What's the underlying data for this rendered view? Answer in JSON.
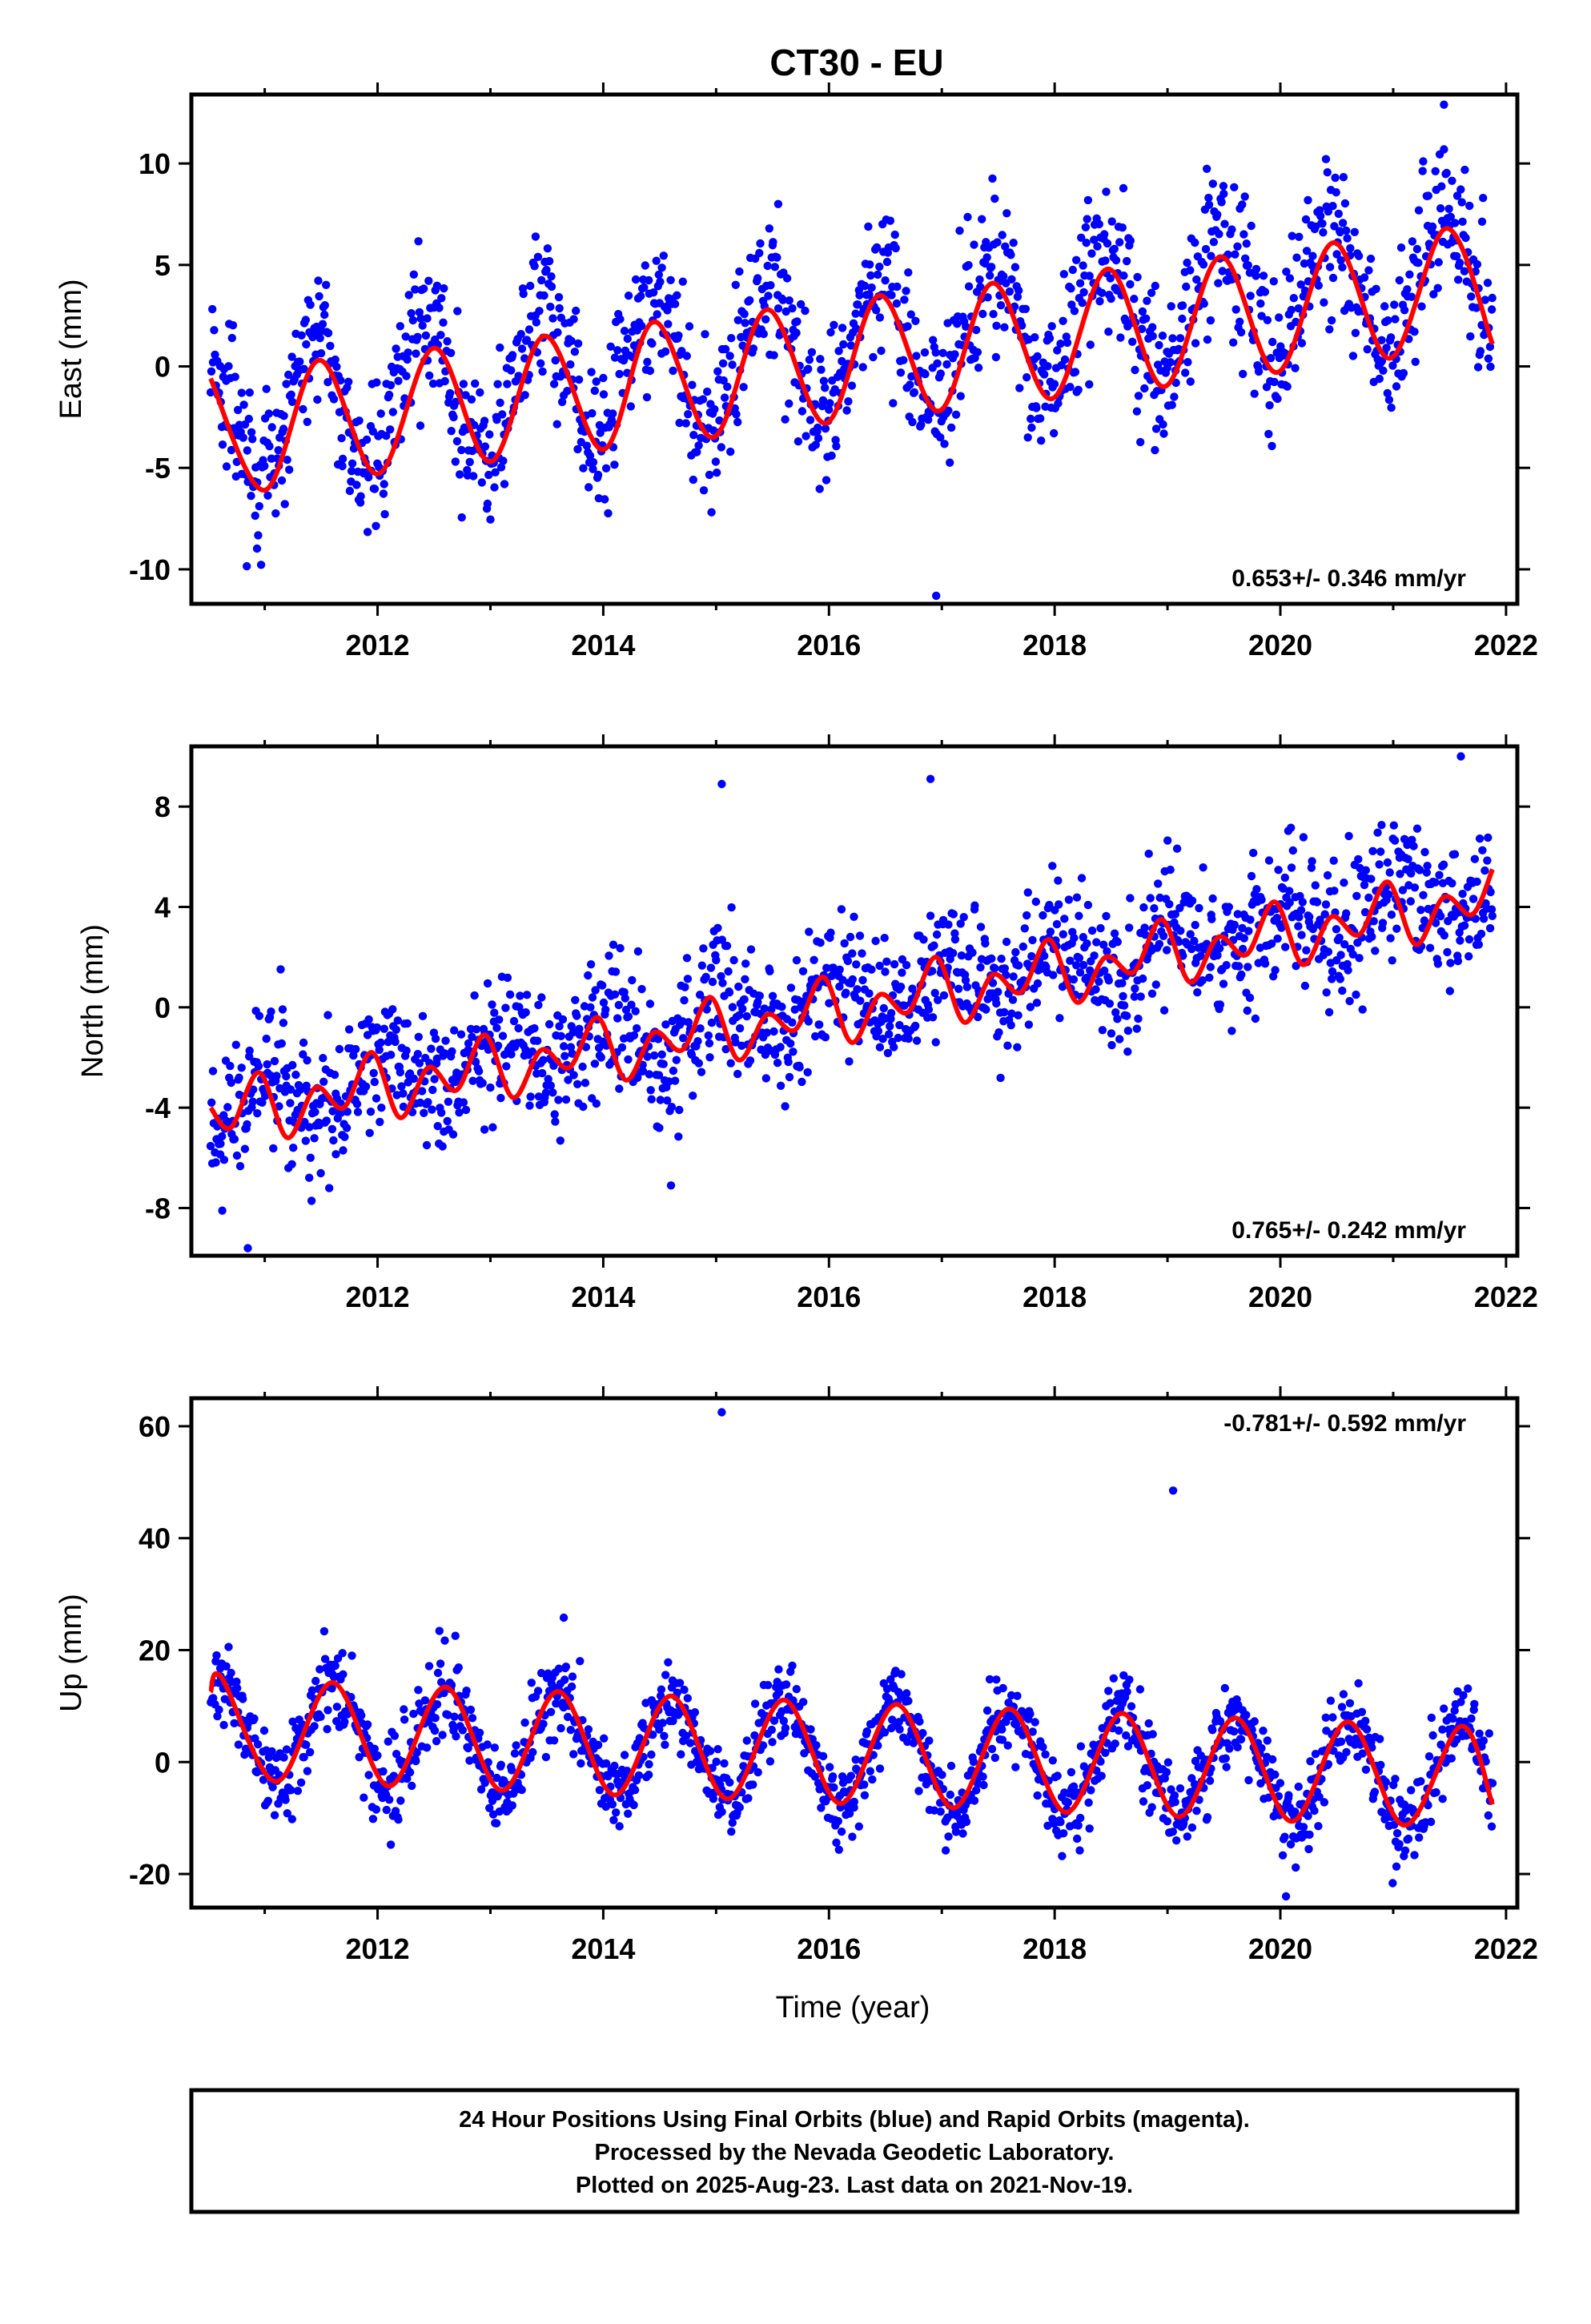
{
  "title": "CT30 - EU",
  "xlabel": "Time (year)",
  "caption": {
    "lines": [
      "24 Hour Positions Using Final Orbits (blue) and Rapid Orbits (magenta).",
      "Processed by the Nevada Geodetic Laboratory.",
      "Plotted on 2025-Aug-23. Last data on 2021-Nov-19."
    ]
  },
  "colors": {
    "points": "#0000ff",
    "model": "#ff0000",
    "axes": "#000000"
  },
  "chart_data": [
    {
      "type": "scatter",
      "ylabel": "East (mm)",
      "rate_label": "0.653+/- 0.346 mm/yr",
      "rate_position": "bottom-right",
      "xlim": [
        2010.35,
        2022.1
      ],
      "ylim": [
        -11.7,
        13.4
      ],
      "x_ticks": [
        2012,
        2014,
        2016,
        2018,
        2020,
        2022
      ],
      "y_ticks": [
        -10,
        -5,
        0,
        5,
        10
      ],
      "grid": false,
      "observations": {
        "name": "24 Hour Positions (Final Orbits)",
        "x_range": [
          2010.52,
          2021.88
        ],
        "trend": {
          "start": -2.7,
          "rate_mm_per_yr": 0.653
        },
        "annual_amplitude_mm": 3.3,
        "annual_peak_phase": 0.45,
        "scatter_sd_mm": 1.9,
        "outliers": [
          [
            2016.95,
            -11.3
          ],
          [
            2021.45,
            12.9
          ],
          [
            2015.55,
            8.0
          ],
          [
            2013.4,
            6.4
          ]
        ]
      },
      "model": {
        "name": "Fitted model",
        "x": [
          2010.52,
          2011.0,
          2011.48,
          2012.0,
          2012.5,
          2013.0,
          2013.48,
          2014.0,
          2014.45,
          2014.97,
          2015.45,
          2015.97,
          2016.45,
          2016.97,
          2017.45,
          2017.97,
          2018.47,
          2018.97,
          2019.47,
          2019.97,
          2020.47,
          2020.97,
          2021.47,
          2021.88
        ],
        "y": [
          -0.6,
          -6.1,
          0.3,
          -5.3,
          0.9,
          -4.7,
          1.5,
          -4.1,
          2.2,
          -3.5,
          2.8,
          -2.8,
          3.5,
          -2.2,
          4.1,
          -1.6,
          4.8,
          -1.0,
          5.4,
          -0.3,
          6.1,
          0.4,
          6.8,
          1.1
        ]
      }
    },
    {
      "type": "scatter",
      "ylabel": "North (mm)",
      "rate_label": "0.765+/- 0.242 mm/yr",
      "rate_position": "bottom-right",
      "xlim": [
        2010.35,
        2022.1
      ],
      "ylim": [
        -9.9,
        10.4
      ],
      "x_ticks": [
        2012,
        2014,
        2016,
        2018,
        2020,
        2022
      ],
      "y_ticks": [
        -8,
        -4,
        0,
        4,
        8
      ],
      "grid": false,
      "observations": {
        "name": "24 Hour Positions (Final Orbits)",
        "x_range": [
          2010.52,
          2021.88
        ],
        "trend": {
          "start": -4.0,
          "rate_mm_per_yr": 0.765
        },
        "annual_amplitude_mm": 0.9,
        "annual_peak_phase": 0.05,
        "scatter_sd_mm": 1.3,
        "outliers": [
          [
            2015.05,
            8.9
          ],
          [
            2016.9,
            9.1
          ],
          [
            2021.6,
            10.0
          ],
          [
            2010.85,
            -9.6
          ],
          [
            2014.6,
            -7.1
          ]
        ]
      },
      "model": {
        "name": "Fitted model",
        "x": [
          2010.52,
          2010.7,
          2010.95,
          2011.2,
          2011.45,
          2011.7,
          2011.95,
          2012.2,
          2012.45,
          2012.7,
          2012.95,
          2013.2,
          2013.45,
          2013.7,
          2013.95,
          2014.2,
          2014.45,
          2014.7,
          2014.95,
          2015.2,
          2015.45,
          2015.7,
          2015.95,
          2016.2,
          2016.45,
          2016.7,
          2016.95,
          2017.2,
          2017.45,
          2017.7,
          2017.95,
          2018.2,
          2018.45,
          2018.7,
          2018.95,
          2019.2,
          2019.45,
          2019.7,
          2019.95,
          2020.2,
          2020.45,
          2020.7,
          2020.95,
          2021.2,
          2021.45,
          2021.7,
          2021.88
        ],
        "y": [
          -4.0,
          -4.8,
          -2.6,
          -5.2,
          -3.2,
          -4.0,
          -1.8,
          -4.4,
          -2.4,
          -3.3,
          -1.1,
          -3.6,
          -1.7,
          -2.4,
          -0.4,
          -2.9,
          -1.0,
          -1.7,
          0.4,
          -2.1,
          -0.3,
          -0.9,
          1.2,
          -1.4,
          0.5,
          -0.2,
          2.0,
          -0.6,
          1.3,
          0.6,
          2.7,
          0.2,
          2.0,
          1.4,
          3.5,
          1.0,
          2.8,
          2.1,
          4.2,
          1.7,
          3.6,
          2.9,
          5.0,
          2.5,
          4.4,
          3.7,
          5.5
        ]
      }
    },
    {
      "type": "scatter",
      "ylabel": "Up (mm)",
      "rate_label": "-0.781+/- 0.592 mm/yr",
      "rate_position": "top-right",
      "xlim": [
        2010.35,
        2022.1
      ],
      "ylim": [
        -26,
        65
      ],
      "x_ticks": [
        2012,
        2014,
        2016,
        2018,
        2020,
        2022
      ],
      "y_ticks": [
        -20,
        0,
        20,
        40,
        60
      ],
      "grid": false,
      "observations": {
        "name": "24 Hour Positions (Final Orbits)",
        "x_range": [
          2010.52,
          2021.88
        ],
        "trend": {
          "start": 5.8,
          "rate_mm_per_yr": -0.781
        },
        "annual_amplitude_mm": 9.0,
        "annual_peak_phase": 0.6,
        "scatter_sd_mm": 3.8,
        "outliers": [
          [
            2015.05,
            62.5
          ],
          [
            2019.05,
            48.5
          ],
          [
            2020.05,
            -24.0
          ],
          [
            2013.65,
            25.8
          ]
        ]
      },
      "model": {
        "name": "Fitted model",
        "x": [
          2010.52,
          2010.62,
          2011.1,
          2011.6,
          2012.1,
          2012.6,
          2013.1,
          2013.6,
          2014.1,
          2014.6,
          2015.1,
          2015.6,
          2016.1,
          2016.6,
          2017.1,
          2017.6,
          2018.1,
          2018.6,
          2019.1,
          2019.6,
          2020.1,
          2020.6,
          2021.1,
          2021.6,
          2021.88
        ],
        "y": [
          12.5,
          15.0,
          -3.5,
          14.2,
          -4.3,
          13.4,
          -5.1,
          12.6,
          -5.9,
          11.8,
          -6.6,
          11.1,
          -7.4,
          10.3,
          -8.2,
          9.5,
          -9.0,
          8.7,
          -9.8,
          7.9,
          -10.6,
          7.2,
          -11.3,
          6.4,
          -7.6
        ]
      }
    }
  ]
}
